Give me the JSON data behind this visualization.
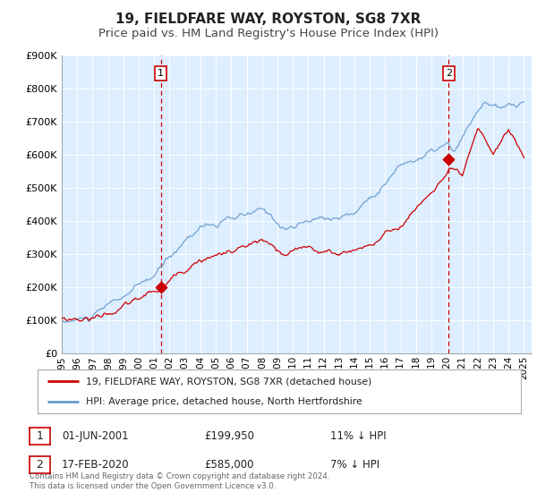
{
  "title": "19, FIELDFARE WAY, ROYSTON, SG8 7XR",
  "subtitle": "Price paid vs. HM Land Registry's House Price Index (HPI)",
  "background_color": "#ffffff",
  "plot_bg_color": "#ddeeff",
  "grid_color": "#ffffff",
  "ylim": [
    0,
    900000
  ],
  "yticks": [
    0,
    100000,
    200000,
    300000,
    400000,
    500000,
    600000,
    700000,
    800000,
    900000
  ],
  "ytick_labels": [
    "£0",
    "£100K",
    "£200K",
    "£300K",
    "£400K",
    "£500K",
    "£600K",
    "£700K",
    "£800K",
    "£900K"
  ],
  "xlim_start": 1995.0,
  "xlim_end": 2025.5,
  "xticks": [
    1995,
    1996,
    1997,
    1998,
    1999,
    2000,
    2001,
    2002,
    2003,
    2004,
    2005,
    2006,
    2007,
    2008,
    2009,
    2010,
    2011,
    2012,
    2013,
    2014,
    2015,
    2016,
    2017,
    2018,
    2019,
    2020,
    2021,
    2022,
    2023,
    2024,
    2025
  ],
  "red_line_color": "#cc0000",
  "blue_line_color": "#6699cc",
  "sale1_x": 2001.42,
  "sale1_y": 199950,
  "sale1_label": "1",
  "sale1_date": "01-JUN-2001",
  "sale1_price": "£199,950",
  "sale1_hpi": "11% ↓ HPI",
  "sale2_x": 2020.12,
  "sale2_y": 585000,
  "sale2_label": "2",
  "sale2_date": "17-FEB-2020",
  "sale2_price": "£585,000",
  "sale2_hpi": "7% ↓ HPI",
  "legend_red_label": "19, FIELDFARE WAY, ROYSTON, SG8 7XR (detached house)",
  "legend_blue_label": "HPI: Average price, detached house, North Hertfordshire",
  "footnote": "Contains HM Land Registry data © Crown copyright and database right 2024.\nThis data is licensed under the Open Government Licence v3.0.",
  "title_fontsize": 11,
  "subtitle_fontsize": 9.5
}
